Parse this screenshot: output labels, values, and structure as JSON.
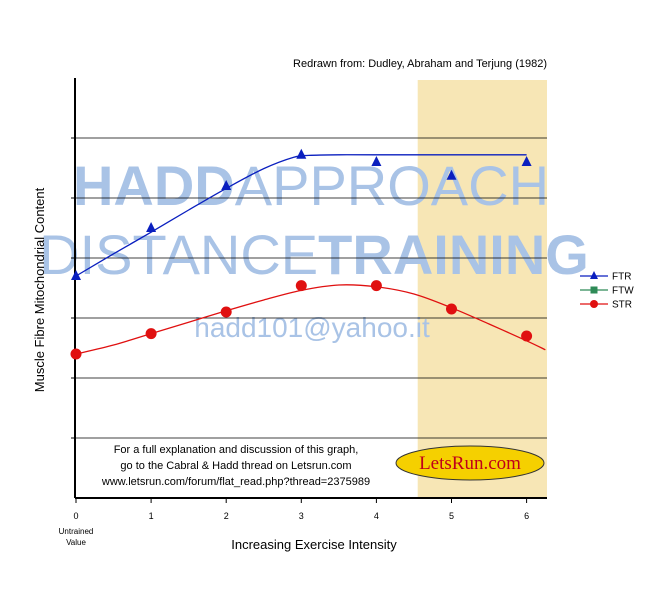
{
  "source_note": "Redrawn from: Dudley, Abraham and Terjung (1982)",
  "watermark": {
    "line1_bold": "HADD",
    "line1_light": "APPROACH",
    "line2_light": "DISTANCE",
    "line2_bold": "TRAINING",
    "email": "hadd101@yahoo.it",
    "color": "#a9c3e6"
  },
  "info_text": {
    "line1": "For a full explanation and discussion of this graph,",
    "line2": "go to the Cabral & Hadd thread on Letsrun.com",
    "line3": "www.letsrun.com/forum/flat_read.php?thread=2375989"
  },
  "logo": {
    "text": "LetsRun.com",
    "fill": "#f5d000",
    "text_color": "#c0001a"
  },
  "colors": {
    "shade": "#f7e6b5",
    "ftr": "#0a1fbf",
    "ftw": "#2e8b57",
    "str": "#e01010"
  },
  "chart_data": {
    "type": "line",
    "xlabel": "Increasing Exercise Intensity",
    "ylabel": "Muscle Fibre Mitochondrial Content",
    "x_ticks": [
      "0",
      "1",
      "2",
      "3",
      "4",
      "5",
      "6"
    ],
    "x_tick0_sublabel": [
      "Untrained",
      "Value"
    ],
    "xlim": [
      0,
      6.25
    ],
    "ylim": [
      0,
      7
    ],
    "grid": "horizontal",
    "shaded_region_x": [
      4.55,
      6.25
    ],
    "legend_position": "right",
    "legend": [
      "FTR",
      "FTW",
      "STR"
    ],
    "series": [
      {
        "name": "FTR",
        "marker": "triangle",
        "x": [
          0,
          1,
          2,
          3,
          4,
          5,
          6
        ],
        "y": [
          3.7,
          4.5,
          5.2,
          5.72,
          5.6,
          5.37,
          5.6
        ],
        "fit_x": [
          0,
          0.5,
          1,
          1.5,
          2,
          2.5,
          2.9,
          3.1,
          3.5,
          4,
          5,
          6
        ],
        "fit_y": [
          3.7,
          4.07,
          4.43,
          4.8,
          5.16,
          5.49,
          5.68,
          5.71,
          5.72,
          5.72,
          5.72,
          5.72
        ]
      },
      {
        "name": "FTW",
        "marker": "square",
        "x": [],
        "y": []
      },
      {
        "name": "STR",
        "marker": "circle",
        "x": [
          0,
          1,
          2,
          3,
          4,
          5,
          6
        ],
        "y": [
          2.4,
          2.74,
          3.1,
          3.54,
          3.54,
          3.15,
          2.7
        ],
        "fit_x": [
          0,
          0.5,
          1,
          1.5,
          2,
          2.5,
          3,
          3.5,
          4,
          4.5,
          5,
          5.5,
          6,
          6.25
        ],
        "fit_y": [
          2.4,
          2.55,
          2.74,
          2.93,
          3.12,
          3.3,
          3.46,
          3.55,
          3.52,
          3.4,
          3.17,
          2.9,
          2.62,
          2.47
        ]
      }
    ]
  }
}
